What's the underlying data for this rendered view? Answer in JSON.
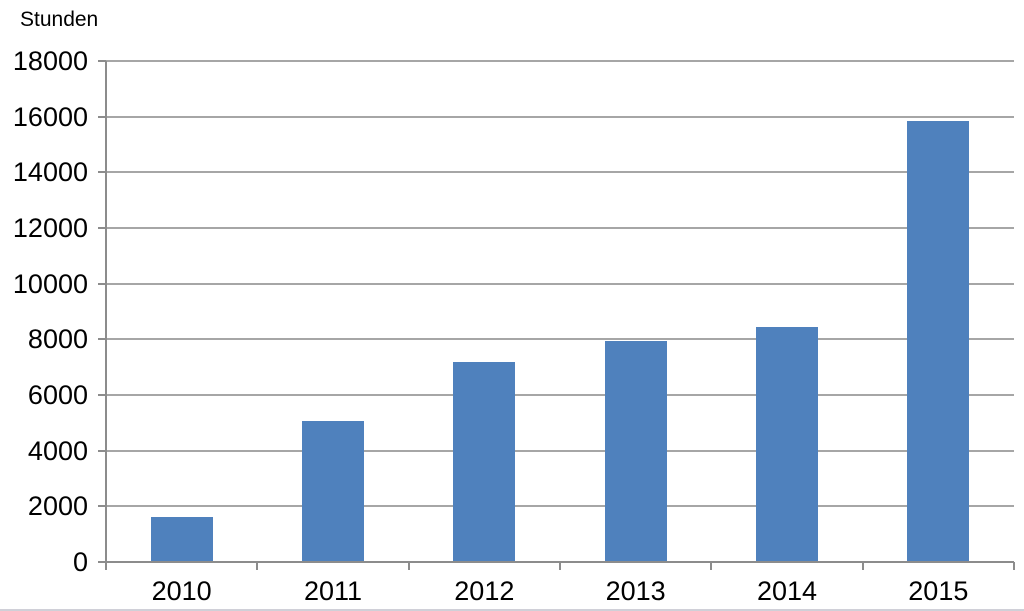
{
  "chart_data": {
    "type": "bar",
    "title": "",
    "ylabel": "Stunden",
    "xlabel": "",
    "categories": [
      "2010",
      "2011",
      "2012",
      "2013",
      "2014",
      "2015"
    ],
    "values": [
      1600,
      5050,
      7200,
      7950,
      8450,
      15850
    ],
    "ylim": [
      0,
      18000
    ],
    "ytick_step": 2000,
    "ytick_labels": [
      "0",
      "2000",
      "4000",
      "6000",
      "8000",
      "10000",
      "12000",
      "14000",
      "16000",
      "18000"
    ],
    "grid": "horizontal-only",
    "legend": "none",
    "colors": {
      "bar": "#4F81BD",
      "gridline": "#A6A6A6",
      "axis": "#8C8C8C",
      "text": "#000000",
      "background": "#FFFFFF",
      "bottom_edge": "#D0D0D8"
    }
  }
}
